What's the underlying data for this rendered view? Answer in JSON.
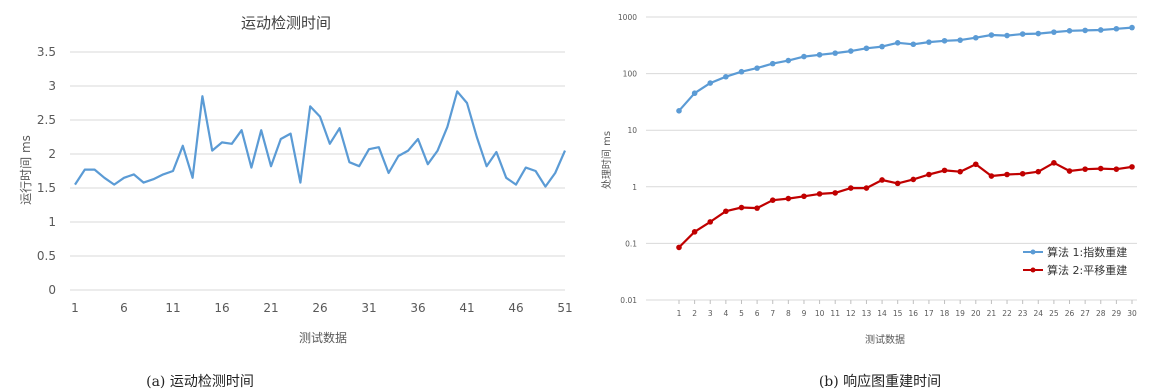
{
  "chart_data": [
    {
      "type": "line",
      "title": "运动检测时间",
      "xlabel": "测试数据",
      "ylabel": "运行时间 ms",
      "caption": "(a)  运动检测时间",
      "ylim": [
        0,
        3.5
      ],
      "yticks": [
        "0",
        "0.5",
        "1",
        "1.5",
        "2",
        "2.5",
        "3",
        "3.5"
      ],
      "yticks_values": [
        0,
        0.5,
        1,
        1.5,
        2,
        2.5,
        3,
        3.5
      ],
      "xticks": [
        "1",
        "6",
        "11",
        "16",
        "21",
        "26",
        "31",
        "36",
        "41",
        "46",
        "51"
      ],
      "xticks_values": [
        1,
        6,
        11,
        16,
        21,
        26,
        31,
        36,
        41,
        46,
        51
      ],
      "xlim": [
        1,
        51
      ],
      "grid": true,
      "color": "#5b9bd5",
      "series": [
        {
          "x": [
            1,
            2,
            3,
            4,
            5,
            6,
            7,
            8,
            9,
            10,
            11,
            12,
            13,
            14,
            15,
            16,
            17,
            18,
            19,
            20,
            21,
            22,
            23,
            24,
            25,
            26,
            27,
            28,
            29,
            30,
            31,
            32,
            33,
            34,
            35,
            36,
            37,
            38,
            39,
            40,
            41,
            42,
            43,
            44,
            45,
            46,
            47,
            48,
            49,
            50,
            51
          ],
          "values": [
            1.55,
            1.77,
            1.77,
            1.65,
            1.55,
            1.65,
            1.7,
            1.58,
            1.63,
            1.7,
            1.75,
            2.12,
            1.65,
            2.85,
            2.05,
            2.17,
            2.15,
            2.35,
            1.8,
            2.35,
            1.82,
            2.22,
            2.3,
            1.58,
            2.7,
            2.55,
            2.15,
            2.38,
            1.88,
            1.82,
            2.07,
            2.1,
            1.72,
            1.97,
            2.05,
            2.22,
            1.85,
            2.05,
            2.4,
            2.92,
            2.75,
            2.25,
            1.82,
            2.03,
            1.65,
            1.55,
            1.8,
            1.75,
            1.52,
            1.72,
            2.05
          ]
        }
      ]
    },
    {
      "type": "line",
      "title": "",
      "xlabel": "测试数据",
      "ylabel": "处理时间 ms",
      "caption": "(b)  响应图重建时间",
      "yscale": "log",
      "ylim": [
        0.01,
        1000
      ],
      "yticks": [
        "0.01",
        "0.1",
        "1",
        "10",
        "100",
        "1000"
      ],
      "yticks_values": [
        0.01,
        0.1,
        1,
        10,
        100,
        1000
      ],
      "x": [
        1,
        2,
        3,
        4,
        5,
        6,
        7,
        8,
        9,
        10,
        11,
        12,
        13,
        14,
        15,
        16,
        17,
        18,
        19,
        20,
        21,
        22,
        23,
        24,
        25,
        26,
        27,
        28,
        29,
        30
      ],
      "xticks": [
        "1",
        "2",
        "3",
        "4",
        "5",
        "6",
        "7",
        "8",
        "9",
        "10",
        "11",
        "12",
        "13",
        "14",
        "15",
        "16",
        "17",
        "18",
        "19",
        "20",
        "21",
        "22",
        "23",
        "24",
        "25",
        "26",
        "27",
        "28",
        "29",
        "30"
      ],
      "grid": true,
      "legend_position": "right",
      "series": [
        {
          "name": "算法 1:指数重建",
          "color": "#5b9bd5",
          "values": [
            22,
            45,
            68,
            88,
            108,
            125,
            150,
            170,
            200,
            215,
            230,
            250,
            280,
            300,
            350,
            330,
            360,
            380,
            390,
            430,
            480,
            470,
            500,
            510,
            540,
            570,
            580,
            590,
            620,
            650
          ]
        },
        {
          "name": "算法 2:平移重建",
          "color": "#c00000",
          "values": [
            0.085,
            0.16,
            0.24,
            0.37,
            0.43,
            0.42,
            0.58,
            0.62,
            0.68,
            0.75,
            0.78,
            0.95,
            0.95,
            1.32,
            1.15,
            1.35,
            1.65,
            1.95,
            1.85,
            2.5,
            1.55,
            1.65,
            1.7,
            1.85,
            2.65,
            1.9,
            2.05,
            2.1,
            2.05,
            2.25
          ]
        }
      ]
    }
  ]
}
